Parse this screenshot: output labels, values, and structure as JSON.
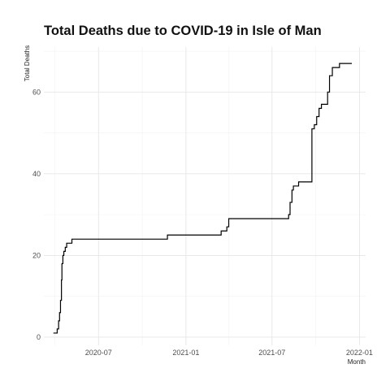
{
  "chart_data": {
    "type": "line",
    "title": "Total Deaths due to COVID-19 in Isle of Man",
    "xlabel": "Month",
    "ylabel": "Total Deaths",
    "x_type": "date",
    "xlim": [
      "2020-03-08",
      "2022-01-14"
    ],
    "ylim": [
      -2,
      71
    ],
    "x_ticks": [
      {
        "value": "2020-07-01",
        "label": "2020-07"
      },
      {
        "value": "2021-01-01",
        "label": "2021-01"
      },
      {
        "value": "2021-07-01",
        "label": "2021-07"
      },
      {
        "value": "2022-01-01",
        "label": "2022-01"
      }
    ],
    "y_ticks": [
      {
        "value": 0,
        "label": "0"
      },
      {
        "value": 20,
        "label": "20"
      },
      {
        "value": 40,
        "label": "40"
      },
      {
        "value": 60,
        "label": "60"
      }
    ],
    "grid": true,
    "legend": "none",
    "line_color": "#000000",
    "series": [
      {
        "step": true,
        "points": [
          {
            "x": "2020-03-28",
            "y": 1
          },
          {
            "x": "2020-04-05",
            "y": 2
          },
          {
            "x": "2020-04-08",
            "y": 4
          },
          {
            "x": "2020-04-10",
            "y": 6
          },
          {
            "x": "2020-04-12",
            "y": 9
          },
          {
            "x": "2020-04-14",
            "y": 14
          },
          {
            "x": "2020-04-15",
            "y": 18
          },
          {
            "x": "2020-04-17",
            "y": 20
          },
          {
            "x": "2020-04-19",
            "y": 21
          },
          {
            "x": "2020-04-22",
            "y": 22
          },
          {
            "x": "2020-04-25",
            "y": 23
          },
          {
            "x": "2020-05-06",
            "y": 24
          },
          {
            "x": "2020-11-23",
            "y": 25
          },
          {
            "x": "2021-03-16",
            "y": 26
          },
          {
            "x": "2021-03-28",
            "y": 27
          },
          {
            "x": "2021-04-01",
            "y": 29
          },
          {
            "x": "2021-08-05",
            "y": 30
          },
          {
            "x": "2021-08-08",
            "y": 33
          },
          {
            "x": "2021-08-12",
            "y": 36
          },
          {
            "x": "2021-08-15",
            "y": 37
          },
          {
            "x": "2021-08-26",
            "y": 38
          },
          {
            "x": "2021-09-23",
            "y": 51
          },
          {
            "x": "2021-09-28",
            "y": 52
          },
          {
            "x": "2021-10-03",
            "y": 54
          },
          {
            "x": "2021-10-08",
            "y": 56
          },
          {
            "x": "2021-10-13",
            "y": 57
          },
          {
            "x": "2021-10-26",
            "y": 60
          },
          {
            "x": "2021-10-30",
            "y": 64
          },
          {
            "x": "2021-11-05",
            "y": 66
          },
          {
            "x": "2021-11-20",
            "y": 67
          },
          {
            "x": "2021-12-16",
            "y": 67
          }
        ]
      }
    ]
  }
}
